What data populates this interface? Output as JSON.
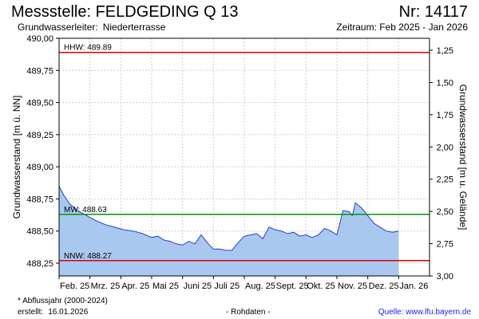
{
  "header": {
    "title": "Messstelle: FELDGEDING Q 13",
    "nr": "Nr: 14117",
    "aquifer_label": "Grundwasserleiter:",
    "aquifer_value": "Niederterrasse",
    "period": "Zeitraum: Feb 2025 - Jan 2026"
  },
  "footer": {
    "note": "* Abflussjahr (2000-2024)",
    "created_label": "erstellt:",
    "created_value": "16.01.2026",
    "raw": "- Rohdaten -",
    "source": "Quelle: www.lfu.bayern.de"
  },
  "colors": {
    "fill": "#a9c8f0",
    "line": "#1f3fd6",
    "hhw": "#e00000",
    "nnw": "#e00000",
    "mw": "#009900",
    "grid": "#cfcfcf"
  },
  "chart_data": {
    "type": "area",
    "ylabel": "Grundwasserstand [m ü. NN]",
    "ylabel_right": "Grundwasserstand [m u. Gelände]",
    "ylim": [
      488.17,
      490.02
    ],
    "y_ticks": [
      "490,00",
      "489,75",
      "489,50",
      "489,25",
      "489,00",
      "488,75",
      "488,50",
      "488,25"
    ],
    "y_ticks_right": [
      "1,25",
      "1,50",
      "1,75",
      "2,00",
      "2,25",
      "2,50",
      "2,75",
      "3,00"
    ],
    "x_ticks": [
      "Feb. 25",
      "Mrz. 25",
      "Apr. 25",
      "Mai 25",
      "Juni 25",
      "Juli 25",
      "Aug. 25",
      "Sept. 25",
      "Okt. 25",
      "Nov. 25",
      "Dez. 25",
      "Jan. 26"
    ],
    "reference_lines": [
      {
        "label": "HHW: 489.89",
        "value": 489.89,
        "key": "hhw"
      },
      {
        "label": "MW: 488.63",
        "value": 488.63,
        "key": "mw"
      },
      {
        "label": "NNW: 488.27",
        "value": 488.27,
        "key": "nnw"
      }
    ],
    "x_domain": [
      0,
      12
    ],
    "series": [
      {
        "x": [
          0.0,
          0.15,
          0.35,
          0.6,
          0.9,
          1.2,
          1.5,
          1.8,
          2.1,
          2.4,
          2.7,
          3.0,
          3.2,
          3.4,
          3.6,
          3.8,
          4.0,
          4.2,
          4.4,
          4.6,
          4.8,
          5.0,
          5.2,
          5.4,
          5.6,
          5.8,
          6.0,
          6.2,
          6.4,
          6.6,
          6.8,
          7.0,
          7.2,
          7.4,
          7.6,
          7.8,
          8.0,
          8.2,
          8.4,
          8.6,
          8.8,
          9.0,
          9.2,
          9.4,
          9.5,
          9.6,
          9.8,
          9.9,
          10.0,
          10.1,
          10.2,
          10.4,
          10.6,
          10.8,
          11.0
        ],
        "y": [
          488.85,
          488.78,
          488.71,
          488.66,
          488.62,
          488.58,
          488.55,
          488.53,
          488.51,
          488.5,
          488.48,
          488.45,
          488.46,
          488.43,
          488.42,
          488.4,
          488.39,
          488.42,
          488.4,
          488.47,
          488.41,
          488.36,
          488.36,
          488.35,
          488.35,
          488.41,
          488.46,
          488.47,
          488.48,
          488.44,
          488.53,
          488.51,
          488.5,
          488.48,
          488.49,
          488.46,
          488.47,
          488.45,
          488.47,
          488.52,
          488.5,
          488.47,
          488.66,
          488.65,
          488.62,
          488.72,
          488.68,
          488.65,
          488.62,
          488.59,
          488.56,
          488.53,
          488.5,
          488.49,
          488.5
        ]
      }
    ]
  }
}
